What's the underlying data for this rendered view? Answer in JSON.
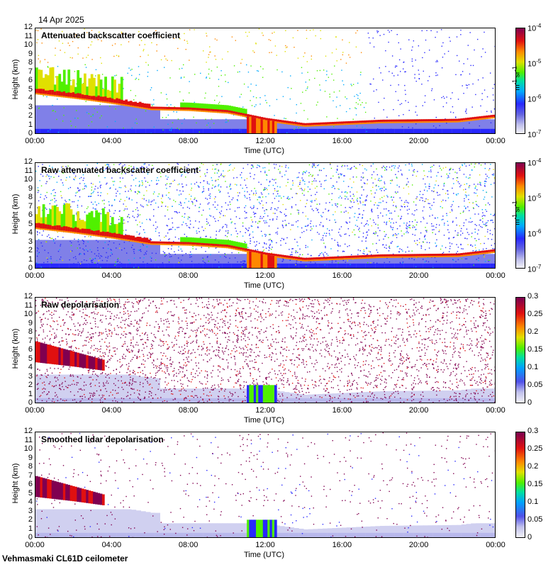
{
  "date": "14 Apr 2025",
  "footer": "Vehmasmaki CL61D ceilometer",
  "x_ticks": [
    "00:00",
    "04:00",
    "08:00",
    "12:00",
    "16:00",
    "20:00",
    "00:00"
  ],
  "y_ticks": [
    "12",
    "11",
    "10",
    "9",
    "8",
    "7",
    "6",
    "5",
    "4",
    "3",
    "2",
    "1",
    "0"
  ],
  "ylabel": "Height (km)",
  "xlabel": "Time (UTC)",
  "colors": {
    "high": "#800050",
    "red": "#e01010",
    "orange": "#ff8800",
    "yellow": "#e0e000",
    "green": "#50f000",
    "teal": "#00e0a0",
    "cyan": "#00aaff",
    "blue": "#2828ff",
    "lightblue": "#8080e8",
    "pale": "#d0d0f0"
  },
  "panels": [
    {
      "title": "Attenuated backscatter coefficient",
      "colorbar": {
        "ticks": [
          "10-4",
          "10-5",
          "10-6",
          "10-7"
        ],
        "unit": "m-1 sr-1",
        "scale": "log"
      }
    },
    {
      "title": "Raw attenuated backscatter coefficient",
      "colorbar": {
        "ticks": [
          "10-4",
          "10-5",
          "10-6",
          "10-7"
        ],
        "unit": "m-1 sr-1",
        "scale": "log"
      }
    },
    {
      "title": "Raw depolarisation",
      "colorbar": {
        "ticks": [
          "0.3",
          "0.25",
          "0.2",
          "0.15",
          "0.1",
          "0.05",
          "0"
        ],
        "scale": "linear"
      }
    },
    {
      "title": "Smoothed lidar depolarisation",
      "colorbar": {
        "ticks": [
          "0.3",
          "0.25",
          "0.2",
          "0.15",
          "0.1",
          "0.05",
          "0"
        ],
        "scale": "linear"
      }
    }
  ],
  "chart_data": [
    {
      "type": "heatmap",
      "title": "Attenuated backscatter coefficient",
      "xlabel": "Time (UTC)",
      "ylabel": "Height (km)",
      "xlim": [
        "00:00",
        "24:00"
      ],
      "ylim": [
        0,
        12
      ],
      "colorbar": {
        "range": [
          1e-07,
          0.0001
        ],
        "scale": "log",
        "unit": "m-1 sr-1"
      },
      "cloud_base_km": [
        {
          "t": 0,
          "h": 4.6
        },
        {
          "t": 2,
          "h": 4.1
        },
        {
          "t": 4,
          "h": 3.5
        },
        {
          "t": 6,
          "h": 2.8
        },
        {
          "t": 8,
          "h": 2.7
        },
        {
          "t": 10,
          "h": 2.4
        },
        {
          "t": 12,
          "h": 1.5
        },
        {
          "t": 14,
          "h": 0.9
        },
        {
          "t": 16,
          "h": 1.1
        },
        {
          "t": 18,
          "h": 1.3
        },
        {
          "t": 22,
          "h": 1.4
        },
        {
          "t": 24,
          "h": 1.9
        }
      ]
    },
    {
      "type": "heatmap",
      "title": "Raw attenuated backscatter coefficient",
      "xlabel": "Time (UTC)",
      "ylabel": "Height (km)",
      "xlim": [
        "00:00",
        "24:00"
      ],
      "ylim": [
        0,
        12
      ],
      "colorbar": {
        "range": [
          1e-07,
          0.0001
        ],
        "scale": "log",
        "unit": "m-1 sr-1"
      }
    },
    {
      "type": "heatmap",
      "title": "Raw depolarisation",
      "xlabel": "Time (UTC)",
      "ylabel": "Height (km)",
      "xlim": [
        "00:00",
        "24:00"
      ],
      "ylim": [
        0,
        12
      ],
      "colorbar": {
        "range": [
          0,
          0.3
        ],
        "scale": "linear"
      }
    },
    {
      "type": "heatmap",
      "title": "Smoothed lidar depolarisation",
      "xlabel": "Time (UTC)",
      "ylabel": "Height (km)",
      "xlim": [
        "00:00",
        "24:00"
      ],
      "ylim": [
        0,
        12
      ],
      "colorbar": {
        "range": [
          0,
          0.3
        ],
        "scale": "linear"
      }
    }
  ]
}
